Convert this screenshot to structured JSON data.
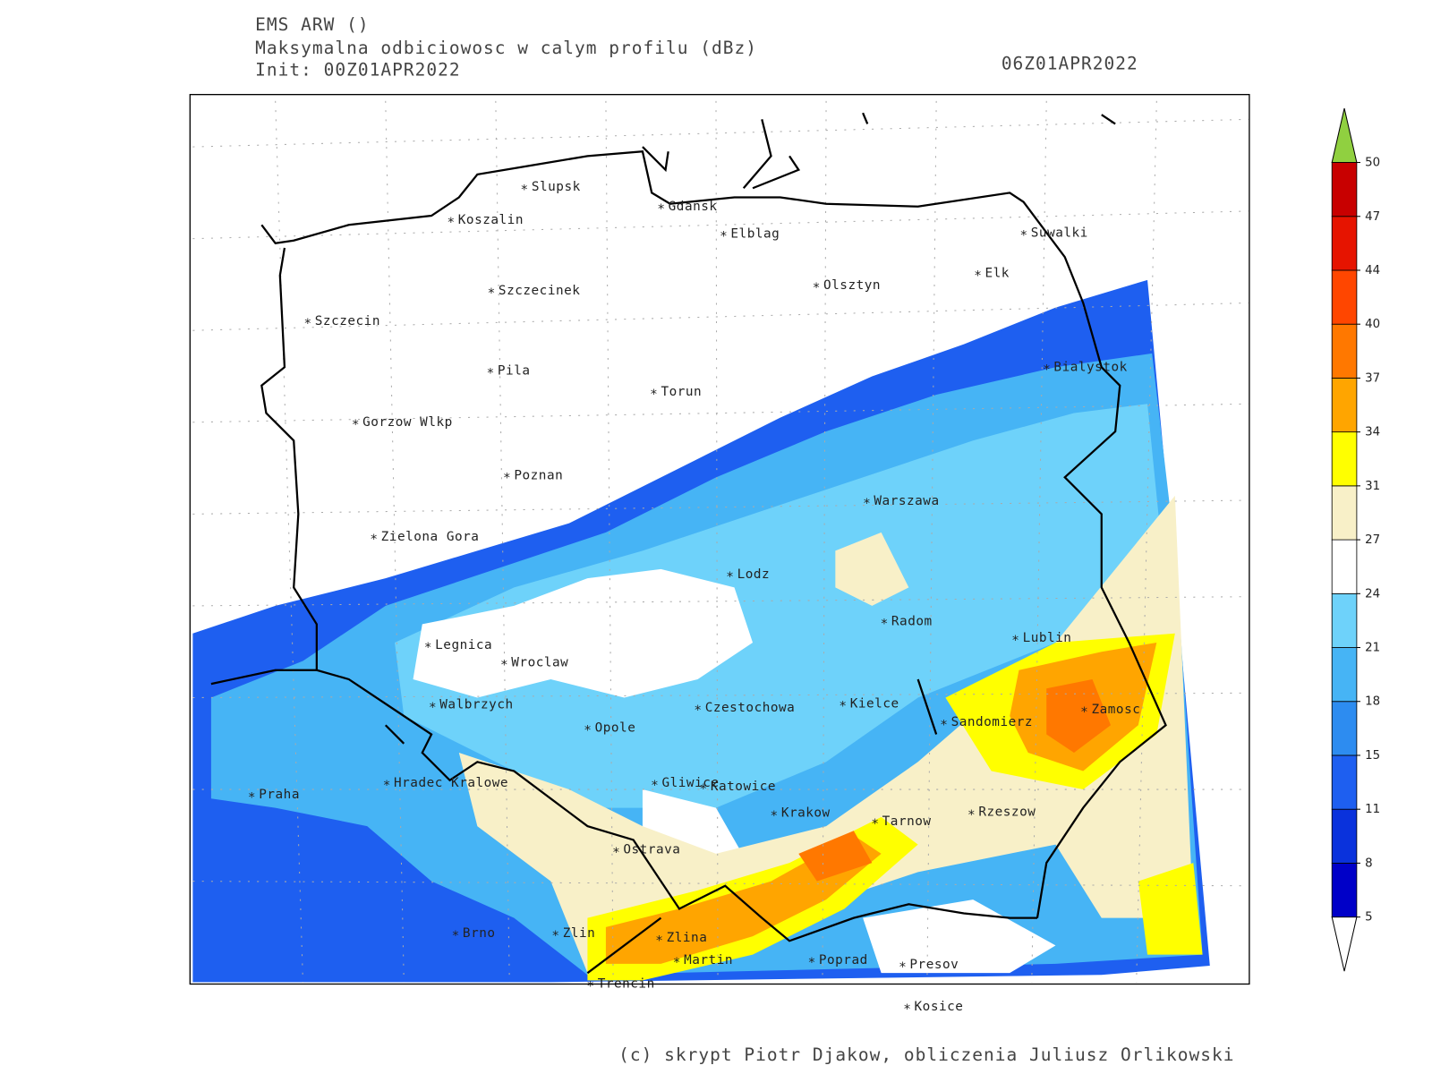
{
  "header": {
    "model": "EMS ARW ()",
    "field": "Maksymalna odbiciowosc w calym profilu (dBz)",
    "init": "Init: 00Z01APR2022",
    "valid": "06Z01APR2022"
  },
  "cities": [
    "Slupsk",
    "Koszalin",
    "Gdansk",
    "Elblag",
    "Suwalki",
    "Elk",
    "Olsztyn",
    "Szczecinek",
    "Szczecin",
    "Bialystok",
    "Pila",
    "Torun",
    "Gorzow Wlkp",
    "Poznan",
    "Warszawa",
    "Zielona Gora",
    "Lodz",
    "Radom",
    "Lublin",
    "Legnica",
    "Wroclaw",
    "Walbrzych",
    "Czestochowa",
    "Kielce",
    "Zamosc",
    "Opole",
    "Sandomierz",
    "Praha",
    "Hradec Kralowe",
    "Gliwice",
    "Katowice",
    "Krakow",
    "Tarnow",
    "Rzeszow",
    "Ostrava",
    "Brno",
    "Zlin",
    "Zlina",
    "Martin",
    "Poprad",
    "Presov",
    "Trencin",
    "Kosice"
  ],
  "colorbar": {
    "ticks": [
      5,
      8,
      11,
      15,
      18,
      21,
      24,
      27,
      31,
      34,
      37,
      40,
      44,
      47,
      50
    ],
    "colors": [
      "#0000c8",
      "#0a32dc",
      "#1e5ff0",
      "#2d8cf0",
      "#46b4f5",
      "#6ed2fa",
      "#ffffff",
      "#f8f0c8",
      "#ffff00",
      "#ffa500",
      "#ff7800",
      "#ff4600",
      "#e61400",
      "#c80000"
    ],
    "over_color": "#90d040",
    "under_color": "#ffffff"
  },
  "footer": "(c) skrypt Piotr Djakow, obliczenia Juliusz Orlikowski"
}
